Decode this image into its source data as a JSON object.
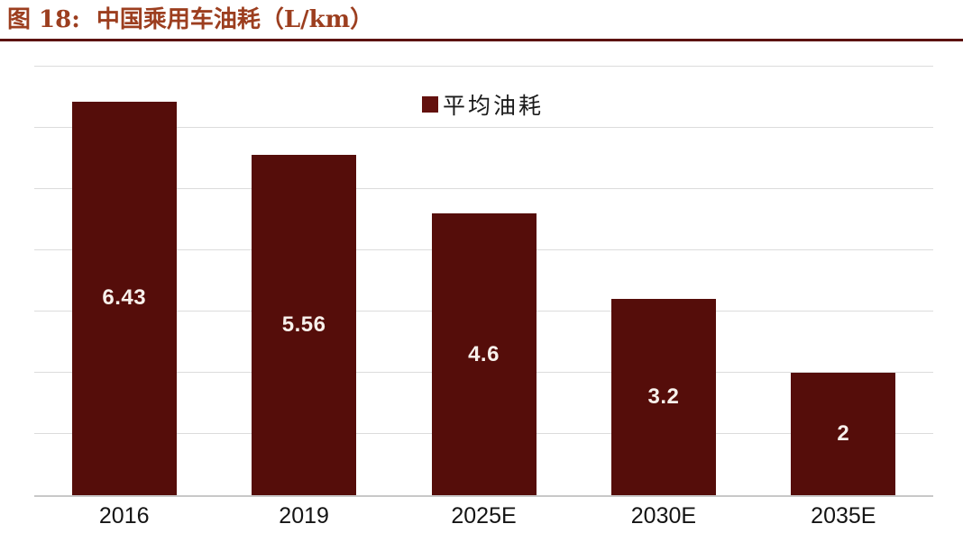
{
  "header": {
    "figure_label": "图 18:",
    "figure_title": "中国乘用车油耗（L/km）"
  },
  "chart_data": {
    "type": "bar",
    "title": "中国乘用车油耗（L/km）",
    "categories": [
      "2016",
      "2019",
      "2025E",
      "2030E",
      "2035E"
    ],
    "values": [
      6.43,
      5.56,
      4.6,
      3.2,
      2
    ],
    "series_name": "平均油耗",
    "legend": [
      "平均油耗"
    ],
    "legend_position": "top-center-inside",
    "value_labels": [
      "6.43",
      "5.56",
      "4.6",
      "3.2",
      "2"
    ],
    "value_label_position": "inside-center",
    "xlabel": "",
    "ylabel": "",
    "ylim": [
      0,
      7
    ],
    "gridline_step": 1,
    "grid": true,
    "y_tick_labels_visible": false
  },
  "colors": {
    "title_text": "#9C3E1F",
    "header_rule": "#5C1210",
    "bar_fill": "#550D0A",
    "legend_swatch": "#63110E",
    "value_label_text": "#F7F0EB",
    "x_label_text": "#141414",
    "legend_text": "#1A1A1A",
    "gridline": "#DCDCDC",
    "axis_line": "#C8C8C8",
    "background": "#FFFFFF"
  }
}
